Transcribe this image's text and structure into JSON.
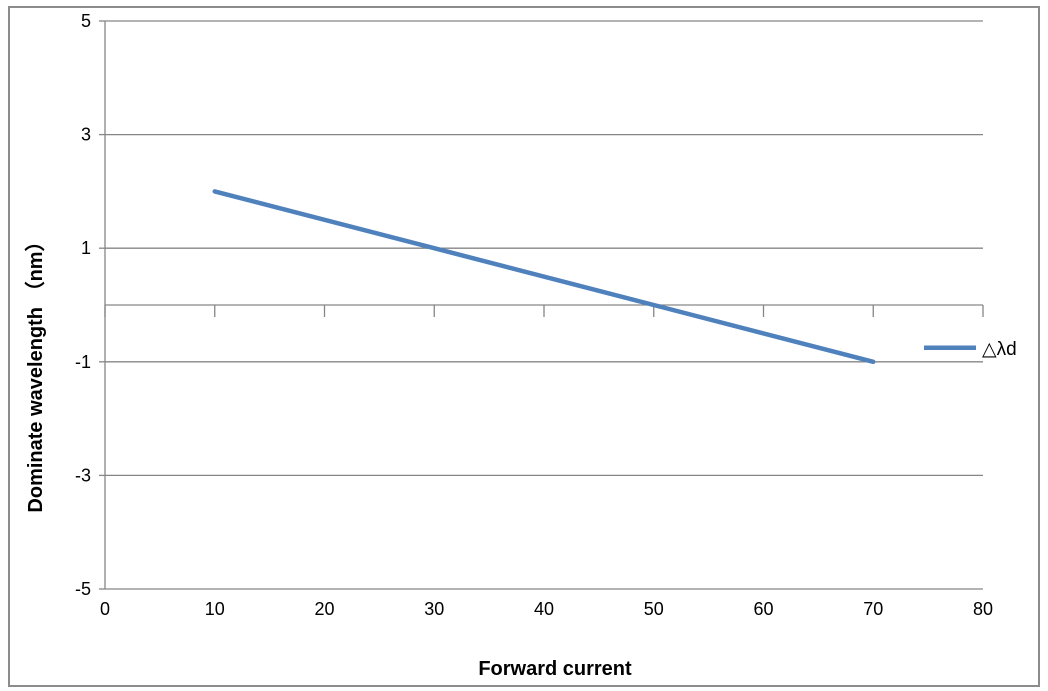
{
  "chart_data": {
    "type": "line",
    "title": "",
    "xlabel": "Forward  current",
    "ylabel": "Dominate wavelength （nm）",
    "xlim": [
      0,
      80
    ],
    "ylim": [
      -5,
      5
    ],
    "x_ticks": [
      "0",
      "10",
      "20",
      "30",
      "40",
      "50",
      "60",
      "70",
      "80"
    ],
    "y_ticks": [
      "5",
      "3",
      "1",
      "-1",
      "-3",
      "-5"
    ],
    "grid": true,
    "legend_position": "right",
    "series": [
      {
        "name": "△λd",
        "color": "#4f81bd",
        "x": [
          10,
          30,
          50,
          70
        ],
        "y": [
          2,
          1,
          0,
          -1
        ]
      }
    ]
  },
  "colors": {
    "line": "#4f81bd",
    "grid": "#868686",
    "frame": "#8c8c8c"
  }
}
